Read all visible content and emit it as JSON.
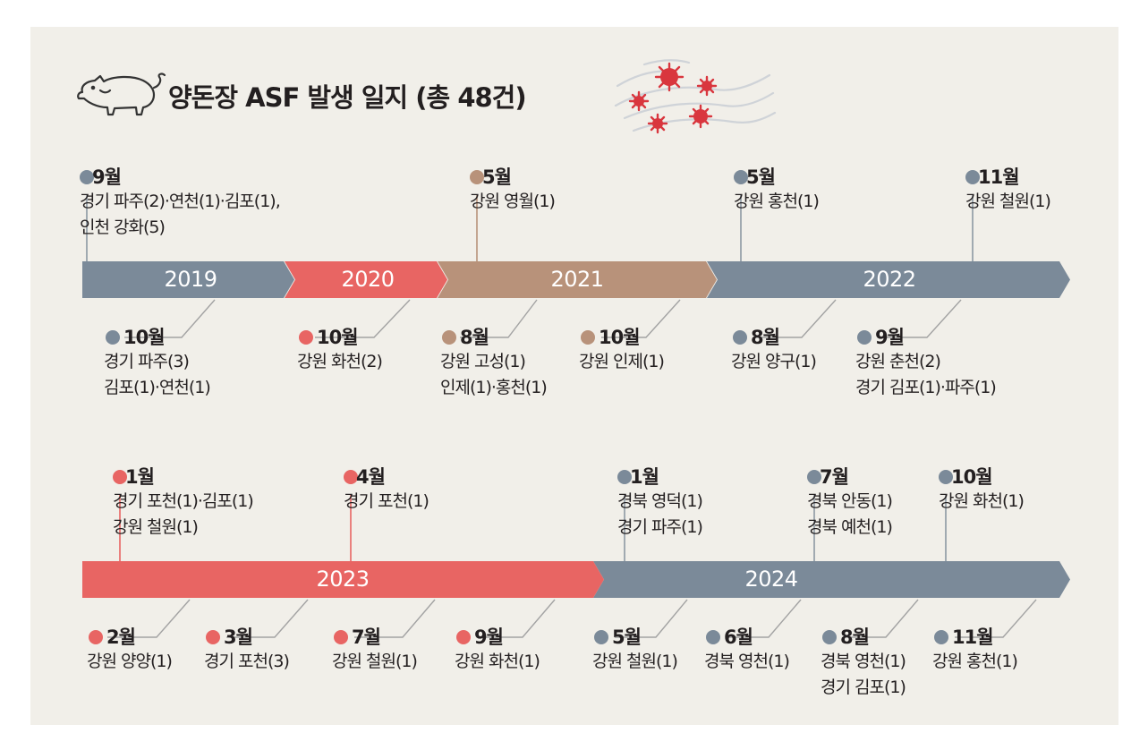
{
  "title": "양돈장 ASF 발생 일지 (총 48건)",
  "colors": {
    "gray": "#7b8a99",
    "red": "#e86563",
    "brown": "#b8927a",
    "background": "#f1efe9"
  },
  "icons": {
    "title_icon": "pig-icon",
    "decoration": "virus-icon"
  },
  "row1": {
    "years": [
      "2019",
      "2020",
      "2021",
      "2022"
    ],
    "top_events": [
      {
        "month": "9월",
        "lines": [
          "경기 파주(2)·연천(1)·김포(1),",
          "인천 강화(5)"
        ],
        "color": "gray"
      },
      {
        "month": "5월",
        "lines": [
          "강원 영월(1)"
        ],
        "color": "brown"
      },
      {
        "month": "5월",
        "lines": [
          "강원 홍천(1)"
        ],
        "color": "gray"
      },
      {
        "month": "11월",
        "lines": [
          "강원 철원(1)"
        ],
        "color": "gray"
      }
    ],
    "bottom_events": [
      {
        "month": "10월",
        "lines": [
          "경기 파주(3)",
          "김포(1)·연천(1)"
        ],
        "color": "gray"
      },
      {
        "month": "10월",
        "lines": [
          "강원 화천(2)"
        ],
        "color": "red"
      },
      {
        "month": "8월",
        "lines": [
          "강원 고성(1)",
          "인제(1)·홍천(1)"
        ],
        "color": "brown"
      },
      {
        "month": "10월",
        "lines": [
          "강원 인제(1)"
        ],
        "color": "brown"
      },
      {
        "month": "8월",
        "lines": [
          "강원 양구(1)"
        ],
        "color": "gray"
      },
      {
        "month": "9월",
        "lines": [
          "강원 춘천(2)",
          "경기 김포(1)·파주(1)"
        ],
        "color": "gray"
      }
    ]
  },
  "row2": {
    "years": [
      "2023",
      "2024"
    ],
    "top_events": [
      {
        "month": "1월",
        "lines": [
          "경기 포천(1)·김포(1)",
          "강원 철원(1)"
        ],
        "color": "red"
      },
      {
        "month": "4월",
        "lines": [
          "경기 포천(1)"
        ],
        "color": "red"
      },
      {
        "month": "1월",
        "lines": [
          "경북 영덕(1)",
          "경기 파주(1)"
        ],
        "color": "gray"
      },
      {
        "month": "7월",
        "lines": [
          "경북 안동(1)",
          "경북 예천(1)"
        ],
        "color": "gray"
      },
      {
        "month": "10월",
        "lines": [
          "강원 화천(1)"
        ],
        "color": "gray"
      }
    ],
    "bottom_events": [
      {
        "month": "2월",
        "lines": [
          "강원 양양(1)"
        ],
        "color": "red"
      },
      {
        "month": "3월",
        "lines": [
          "경기 포천(3)"
        ],
        "color": "red"
      },
      {
        "month": "7월",
        "lines": [
          "강원 철원(1)"
        ],
        "color": "red"
      },
      {
        "month": "9월",
        "lines": [
          "강원 화천(1)"
        ],
        "color": "red"
      },
      {
        "month": "5월",
        "lines": [
          "강원 철원(1)"
        ],
        "color": "gray"
      },
      {
        "month": "6월",
        "lines": [
          "경북 영천(1)"
        ],
        "color": "gray"
      },
      {
        "month": "8월",
        "lines": [
          "경북 영천(1)",
          "경기 김포(1)"
        ],
        "color": "gray"
      },
      {
        "month": "11월",
        "lines": [
          "강원 홍천(1)"
        ],
        "color": "gray"
      }
    ]
  }
}
